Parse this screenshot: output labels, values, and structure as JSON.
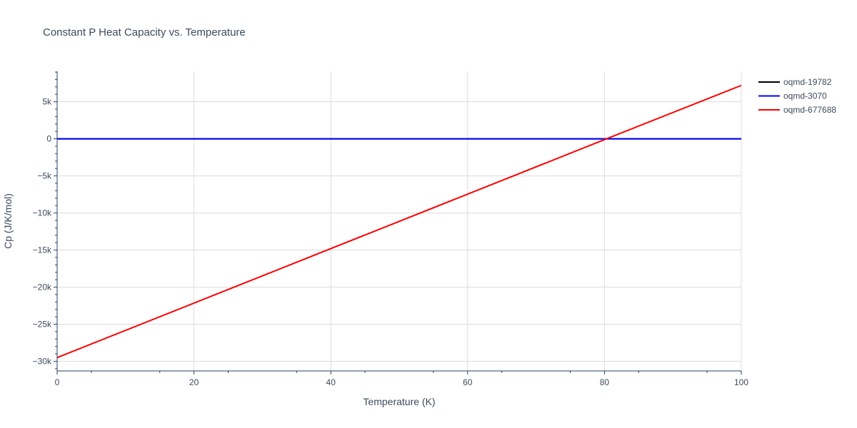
{
  "chart_data": {
    "type": "line",
    "title": "Constant P Heat Capacity vs. Temperature",
    "xlabel": "Temperature (K)",
    "ylabel": "Cp (J/K/mol)",
    "xlim": [
      0,
      100
    ],
    "ylim": [
      -31300,
      9100
    ],
    "x_ticks": [
      0,
      20,
      40,
      60,
      80,
      100
    ],
    "x_tick_labels": [
      "0",
      "20",
      "40",
      "60",
      "80",
      "100"
    ],
    "y_ticks": [
      5000,
      0,
      -5000,
      -10000,
      -15000,
      -20000,
      -25000,
      -30000
    ],
    "y_tick_labels": [
      "5k",
      "0",
      "−5k",
      "−10k",
      "−15k",
      "−20k",
      "−25k",
      "−30k"
    ],
    "grid": true,
    "legend_position": "top-right",
    "series": [
      {
        "name": "oqmd-19782",
        "color": "#000000",
        "x": [
          0,
          100
        ],
        "y": [
          0,
          0
        ]
      },
      {
        "name": "oqmd-3070",
        "color": "#0000ff",
        "x": [
          0,
          100
        ],
        "y": [
          0,
          0
        ]
      },
      {
        "name": "oqmd-677688",
        "color": "#ff0000",
        "x": [
          0,
          80.3,
          100
        ],
        "y": [
          -29500,
          0,
          7200
        ]
      }
    ]
  }
}
